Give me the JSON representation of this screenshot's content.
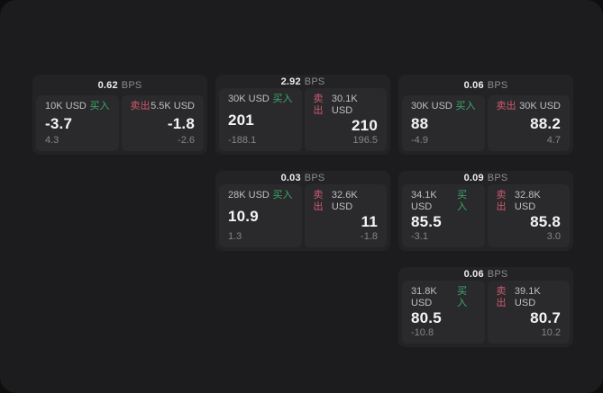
{
  "labels": {
    "bps_unit": "BPS",
    "buy": "买入",
    "sell": "卖出"
  },
  "colors": {
    "buy_green": "#3da967",
    "sell_red": "#cf5a6b",
    "window_bg": "#1c1c1e",
    "card_bg": "#232325",
    "panel_bg": "#2a2a2d"
  },
  "cards": [
    {
      "bps": "0.62",
      "buy": {
        "amount": "10K USD",
        "value": "-3.7",
        "sub": "4.3"
      },
      "sell": {
        "amount": "5.5K USD",
        "value": "-1.8",
        "sub": "-2.6"
      }
    },
    {
      "bps": "2.92",
      "buy": {
        "amount": "30K USD",
        "value": "201",
        "sub": "-188.1"
      },
      "sell": {
        "amount": "30.1K USD",
        "value": "210",
        "sub": "196.5"
      }
    },
    {
      "bps": "0.06",
      "buy": {
        "amount": "30K USD",
        "value": "88",
        "sub": "-4.9"
      },
      "sell": {
        "amount": "30K USD",
        "value": "88.2",
        "sub": "4.7"
      }
    },
    {
      "bps": "0.03",
      "buy": {
        "amount": "28K USD",
        "value": "10.9",
        "sub": "1.3"
      },
      "sell": {
        "amount": "32.6K USD",
        "value": "11",
        "sub": "-1.8"
      }
    },
    {
      "bps": "0.09",
      "buy": {
        "amount": "34.1K USD",
        "value": "85.5",
        "sub": "-3.1"
      },
      "sell": {
        "amount": "32.8K USD",
        "value": "85.8",
        "sub": "3.0"
      }
    },
    {
      "bps": "0.06",
      "buy": {
        "amount": "31.8K USD",
        "value": "80.5",
        "sub": "-10.8"
      },
      "sell": {
        "amount": "39.1K USD",
        "value": "80.7",
        "sub": "10.2"
      }
    }
  ]
}
